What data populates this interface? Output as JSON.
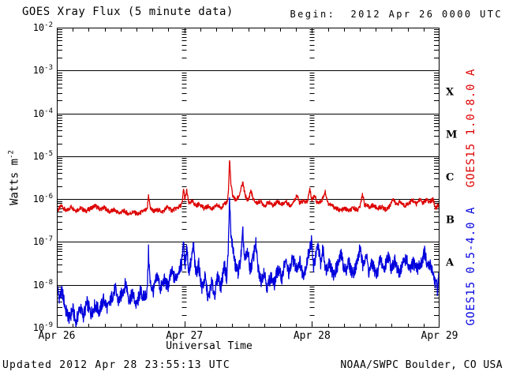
{
  "chart_data": {
    "type": "line",
    "title": "GOES Xray Flux (5 minute data)",
    "begin_label": "Begin:  2012 Apr 26 0000 UTC",
    "x_label": "Universal Time",
    "y_label_base": "Watts m",
    "y_label_exponent": "-2",
    "x_tick_labels": [
      "Apr 26",
      "Apr 27",
      "Apr 28",
      "Apr 29"
    ],
    "x_range_hours": [
      0,
      72
    ],
    "x_minor_tick_hours": 3,
    "day_line_hours": [
      24,
      48
    ],
    "y_tick_exponents": [
      -2,
      -3,
      -4,
      -5,
      -6,
      -7,
      -8,
      -9
    ],
    "ylim": [
      1e-09,
      0.01
    ],
    "y_scale": "log",
    "grid": "solid horizontal line at each decade; day boundaries marked by columns of minor-tick dashes",
    "flare_classes": [
      "X",
      "M",
      "C",
      "B",
      "A"
    ],
    "axis_color": "#000000",
    "footer_left": "Updated 2012 Apr 28 23:55:13 UTC",
    "footer_right": "NOAA/SWPC Boulder, CO USA",
    "series": [
      {
        "name": "GOES15 1.0-8.0 A",
        "color": "#dd0000",
        "noise_decades": 0.05,
        "points": [
          [
            0,
            5.2e-07
          ],
          [
            0.9,
            7e-07
          ],
          [
            1.8,
            5.2e-07
          ],
          [
            2.7,
            6.6e-07
          ],
          [
            3.6,
            5.4e-07
          ],
          [
            4.5,
            6.2e-07
          ],
          [
            5.4,
            5.2e-07
          ],
          [
            6.3,
            6e-07
          ],
          [
            7.2,
            7e-07
          ],
          [
            8.1,
            5.8e-07
          ],
          [
            9.0,
            6.3e-07
          ],
          [
            9.9,
            5e-07
          ],
          [
            10.8,
            5.6e-07
          ],
          [
            11.7,
            4.7e-07
          ],
          [
            12.6,
            5.3e-07
          ],
          [
            13.5,
            4.5e-07
          ],
          [
            14.4,
            5e-07
          ],
          [
            15.3,
            4.4e-07
          ],
          [
            16.2,
            5.2e-07
          ],
          [
            17.0,
            5.6e-07
          ],
          [
            17.25,
            1.25e-06
          ],
          [
            17.6,
            6e-07
          ],
          [
            18.3,
            5.2e-07
          ],
          [
            19.1,
            5.6e-07
          ],
          [
            19.9,
            5e-07
          ],
          [
            20.8,
            6.6e-07
          ],
          [
            21.6,
            5.4e-07
          ],
          [
            22.4,
            6e-07
          ],
          [
            23.2,
            6.8e-07
          ],
          [
            23.6,
            8e-07
          ],
          [
            23.85,
            1.8e-06
          ],
          [
            24.1,
            9.5e-07
          ],
          [
            24.45,
            1.6e-06
          ],
          [
            24.8,
            8e-07
          ],
          [
            25.5,
            8.8e-07
          ],
          [
            26.2,
            7e-07
          ],
          [
            26.9,
            7.8e-07
          ],
          [
            27.7,
            6e-07
          ],
          [
            28.5,
            6.8e-07
          ],
          [
            29.3,
            5.8e-07
          ],
          [
            30.1,
            7.2e-07
          ],
          [
            30.9,
            6.4e-07
          ],
          [
            31.6,
            7.6e-07
          ],
          [
            32.1,
            9e-07
          ],
          [
            32.3,
            1.6e-06
          ],
          [
            32.5,
            8.8e-06
          ],
          [
            32.75,
            2.2e-06
          ],
          [
            33.1,
            1.2e-06
          ],
          [
            33.7,
            9.2e-07
          ],
          [
            34.3,
            1.2e-06
          ],
          [
            35.0,
            2.4e-06
          ],
          [
            35.45,
            1.2e-06
          ],
          [
            36.0,
            9e-07
          ],
          [
            36.5,
            1.6e-06
          ],
          [
            37.0,
            9.5e-07
          ],
          [
            37.6,
            8e-07
          ],
          [
            38.3,
            9e-07
          ],
          [
            39.1,
            7e-07
          ],
          [
            39.9,
            8.5e-07
          ],
          [
            40.7,
            7e-07
          ],
          [
            41.5,
            9e-07
          ],
          [
            42.3,
            7.5e-07
          ],
          [
            43.1,
            8.8e-07
          ],
          [
            43.9,
            7e-07
          ],
          [
            44.7,
            9.2e-07
          ],
          [
            45.15,
            1.25e-06
          ],
          [
            45.7,
            8e-07
          ],
          [
            46.4,
            9e-07
          ],
          [
            47.1,
            8.2e-07
          ],
          [
            47.6,
            1.7e-06
          ],
          [
            48.0,
            9.5e-07
          ],
          [
            48.5,
            1.25e-06
          ],
          [
            49.0,
            8e-07
          ],
          [
            49.8,
            9e-07
          ],
          [
            50.5,
            1.5e-06
          ],
          [
            51.0,
            8e-07
          ],
          [
            51.8,
            7e-07
          ],
          [
            52.6,
            6e-07
          ],
          [
            53.4,
            5.4e-07
          ],
          [
            54.2,
            6e-07
          ],
          [
            55.0,
            5.3e-07
          ],
          [
            55.8,
            6.2e-07
          ],
          [
            56.6,
            5.6e-07
          ],
          [
            57.1,
            7e-07
          ],
          [
            57.5,
            1.35e-06
          ],
          [
            57.9,
            7.5e-07
          ],
          [
            58.7,
            6.5e-07
          ],
          [
            59.5,
            7.2e-07
          ],
          [
            60.3,
            6e-07
          ],
          [
            61.1,
            6.6e-07
          ],
          [
            61.9,
            5.6e-07
          ],
          [
            62.7,
            7e-07
          ],
          [
            63.2,
            1.05e-06
          ],
          [
            63.8,
            7.5e-07
          ],
          [
            64.6,
            8.5e-07
          ],
          [
            65.4,
            7e-07
          ],
          [
            66.2,
            8e-07
          ],
          [
            67.0,
            9.5e-07
          ],
          [
            67.6,
            7.5e-07
          ],
          [
            68.3,
            1e-06
          ],
          [
            68.9,
            8e-07
          ],
          [
            69.5,
            9.5e-07
          ],
          [
            70.1,
            8.5e-07
          ],
          [
            70.8,
            9.8e-07
          ],
          [
            71.3,
            6e-07
          ],
          [
            71.7,
            7.5e-07
          ],
          [
            72,
            6.5e-07
          ]
        ]
      },
      {
        "name": "GOES15 0.5-4.0 A",
        "color": "#0000dd",
        "noise_decades": 0.16,
        "points": [
          [
            0,
            9e-09
          ],
          [
            0.5,
            5e-09
          ],
          [
            1.0,
            7e-09
          ],
          [
            1.7,
            2.5e-09
          ],
          [
            2.4,
            1.6e-09
          ],
          [
            3.0,
            2.8e-09
          ],
          [
            3.6,
            1.2e-09
          ],
          [
            4.3,
            3e-09
          ],
          [
            5.0,
            1.9e-09
          ],
          [
            5.7,
            3.8e-09
          ],
          [
            6.4,
            2.1e-09
          ],
          [
            7.2,
            3.4e-09
          ],
          [
            8.0,
            2.4e-09
          ],
          [
            8.8,
            4.5e-09
          ],
          [
            9.6,
            2.8e-09
          ],
          [
            10.3,
            5e-09
          ],
          [
            11.0,
            8e-09
          ],
          [
            11.6,
            4e-09
          ],
          [
            12.3,
            6.5e-09
          ],
          [
            13.0,
            1.1e-08
          ],
          [
            13.6,
            4.5e-09
          ],
          [
            14.3,
            6e-09
          ],
          [
            15.0,
            3.2e-09
          ],
          [
            15.7,
            7e-09
          ],
          [
            16.4,
            5e-09
          ],
          [
            17.0,
            7e-09
          ],
          [
            17.25,
            6e-08
          ],
          [
            17.55,
            1.1e-08
          ],
          [
            18.2,
            7e-09
          ],
          [
            18.9,
            1.7e-08
          ],
          [
            19.5,
            8e-09
          ],
          [
            20.2,
            1.3e-08
          ],
          [
            20.9,
            9e-09
          ],
          [
            21.6,
            2e-08
          ],
          [
            22.3,
            1.3e-08
          ],
          [
            23.0,
            2.4e-08
          ],
          [
            23.5,
            3e-08
          ],
          [
            23.8,
            1.15e-07
          ],
          [
            24.1,
            2.6e-08
          ],
          [
            24.45,
            9e-08
          ],
          [
            24.8,
            2e-08
          ],
          [
            25.4,
            4e-08
          ],
          [
            25.7,
            9e-08
          ],
          [
            26.1,
            1.8e-08
          ],
          [
            26.7,
            2.9e-08
          ],
          [
            27.3,
            8e-09
          ],
          [
            27.9,
            1.5e-08
          ],
          [
            28.5,
            4.5e-09
          ],
          [
            29.1,
            1.1e-08
          ],
          [
            29.7,
            6e-09
          ],
          [
            30.3,
            1.6e-08
          ],
          [
            30.9,
            9e-09
          ],
          [
            31.5,
            2.9e-08
          ],
          [
            31.95,
            1.5e-08
          ],
          [
            32.25,
            6e-08
          ],
          [
            32.5,
            1.1e-06
          ],
          [
            32.75,
            1.3e-07
          ],
          [
            33.1,
            8e-08
          ],
          [
            33.5,
            3e-08
          ],
          [
            34.1,
            2e-08
          ],
          [
            34.6,
            4e-08
          ],
          [
            35.0,
            1.6e-07
          ],
          [
            35.35,
            3.5e-08
          ],
          [
            35.9,
            6e-08
          ],
          [
            36.4,
            2.2e-08
          ],
          [
            37.0,
            4.5e-08
          ],
          [
            37.4,
            1.05e-07
          ],
          [
            37.8,
            2.6e-08
          ],
          [
            38.4,
            1.2e-08
          ],
          [
            39.0,
            2.2e-08
          ],
          [
            39.6,
            8e-09
          ],
          [
            40.2,
            1.6e-08
          ],
          [
            40.9,
            1e-08
          ],
          [
            41.6,
            2.4e-08
          ],
          [
            42.3,
            1.4e-08
          ],
          [
            43.0,
            3.6e-08
          ],
          [
            43.7,
            1.8e-08
          ],
          [
            44.4,
            4.2e-08
          ],
          [
            45.0,
            2.4e-08
          ],
          [
            45.7,
            3.6e-08
          ],
          [
            46.3,
            1.7e-08
          ],
          [
            47.0,
            3e-08
          ],
          [
            47.45,
            6e-08
          ],
          [
            47.9,
            1.05e-07
          ],
          [
            48.3,
            2.6e-08
          ],
          [
            49.2,
            8.5e-08
          ],
          [
            49.6,
            3e-08
          ],
          [
            50.1,
            7e-08
          ],
          [
            50.6,
            2.2e-08
          ],
          [
            51.3,
            3.6e-08
          ],
          [
            52.0,
            1.6e-08
          ],
          [
            52.8,
            2.8e-08
          ],
          [
            53.5,
            5e-08
          ],
          [
            54.2,
            2e-08
          ],
          [
            54.9,
            3.4e-08
          ],
          [
            55.6,
            1.8e-08
          ],
          [
            56.3,
            2.7e-08
          ],
          [
            57.1,
            7.5e-08
          ],
          [
            57.6,
            2.4e-08
          ],
          [
            58.1,
            6e-08
          ],
          [
            58.7,
            2e-08
          ],
          [
            59.4,
            3.2e-08
          ],
          [
            60.1,
            1.6e-08
          ],
          [
            60.9,
            4e-08
          ],
          [
            61.6,
            2.2e-08
          ],
          [
            62.3,
            5e-08
          ],
          [
            62.9,
            2.6e-08
          ],
          [
            63.6,
            3.5e-08
          ],
          [
            64.3,
            1.8e-08
          ],
          [
            65.0,
            2.9e-08
          ],
          [
            65.7,
            4.3e-08
          ],
          [
            66.4,
            2e-08
          ],
          [
            67.1,
            3.3e-08
          ],
          [
            67.8,
            2.4e-08
          ],
          [
            68.5,
            3e-08
          ],
          [
            69.2,
            6e-08
          ],
          [
            69.7,
            2.5e-08
          ],
          [
            70.4,
            2.9e-08
          ],
          [
            71.1,
            1.3e-08
          ],
          [
            71.6,
            8e-09
          ],
          [
            72,
            1.9e-08
          ]
        ]
      }
    ]
  }
}
